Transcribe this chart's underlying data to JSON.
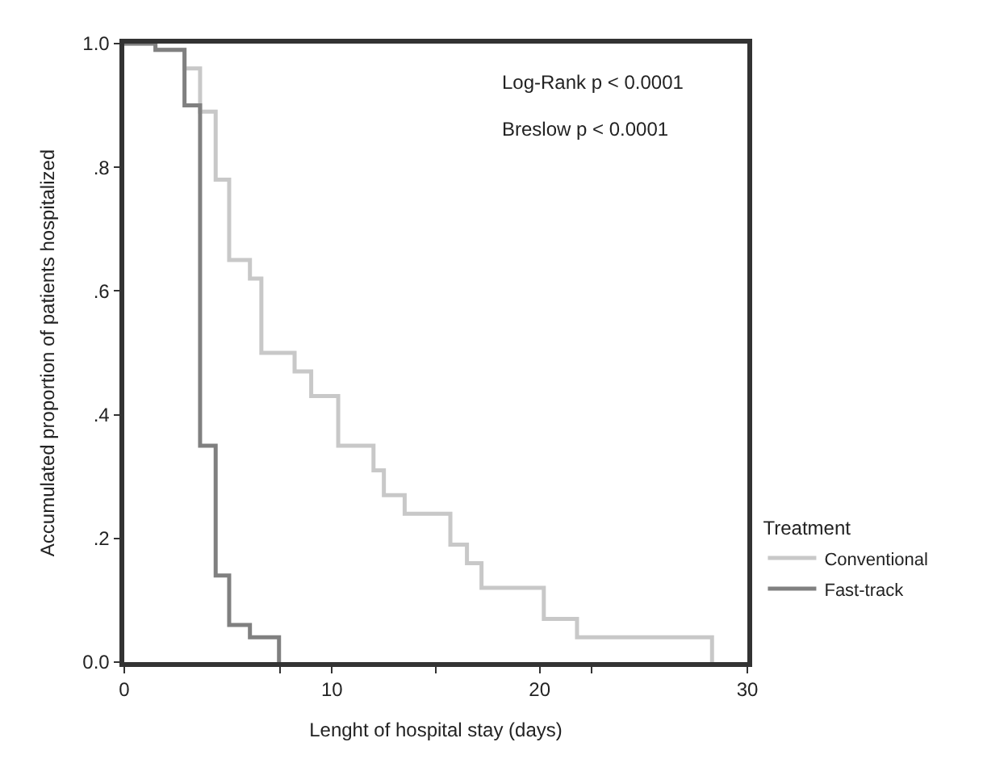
{
  "chart_data": {
    "type": "step",
    "xlabel": "Lenght of hospital stay (days)",
    "ylabel": "Accumulated proportion of patients hospitalized",
    "legend_title": "Treatment",
    "legend": "right",
    "xlim": [
      0,
      30
    ],
    "xticks": [
      0,
      {
        "value": 7.5,
        "label": null
      },
      10,
      {
        "value": 15,
        "label": null
      },
      20,
      {
        "value": 22.5,
        "label": null
      },
      30
    ],
    "ylim": [
      0,
      1
    ],
    "yticks": [
      {
        "value": 0,
        "label": "0.0"
      },
      {
        "value": 0.2,
        "label": ".2"
      },
      {
        "value": 0.4,
        "label": ".4"
      },
      {
        "value": 0.6,
        "label": ".6"
      },
      {
        "value": 0.8,
        "label": ".8"
      },
      {
        "value": 1,
        "label": "1.0"
      }
    ],
    "annotations": [
      "Log-Rank p < 0.0001",
      "Breslow p < 0.0001"
    ],
    "series": [
      {
        "name": "Conventional",
        "color": "#c8c8c8",
        "x": [
          0,
          1.5,
          2.9,
          3.65,
          4.4,
          5.05,
          6.05,
          6.6,
          8.2,
          9.0,
          10.3,
          12.0,
          12.5,
          13.5,
          15.7,
          16.5,
          17.2,
          20.2,
          21.8,
          28.3
        ],
        "values": [
          1.0,
          0.99,
          0.96,
          0.89,
          0.78,
          0.65,
          0.62,
          0.5,
          0.47,
          0.43,
          0.35,
          0.31,
          0.27,
          0.24,
          0.19,
          0.16,
          0.12,
          0.07,
          0.04,
          0.0
        ]
      },
      {
        "name": "Fast-track",
        "color": "#808080",
        "x": [
          0,
          1.5,
          2.9,
          3.65,
          4.4,
          5.05,
          6.05,
          7.45
        ],
        "values": [
          1.0,
          0.99,
          0.9,
          0.35,
          0.14,
          0.06,
          0.04,
          0.0
        ]
      }
    ]
  }
}
